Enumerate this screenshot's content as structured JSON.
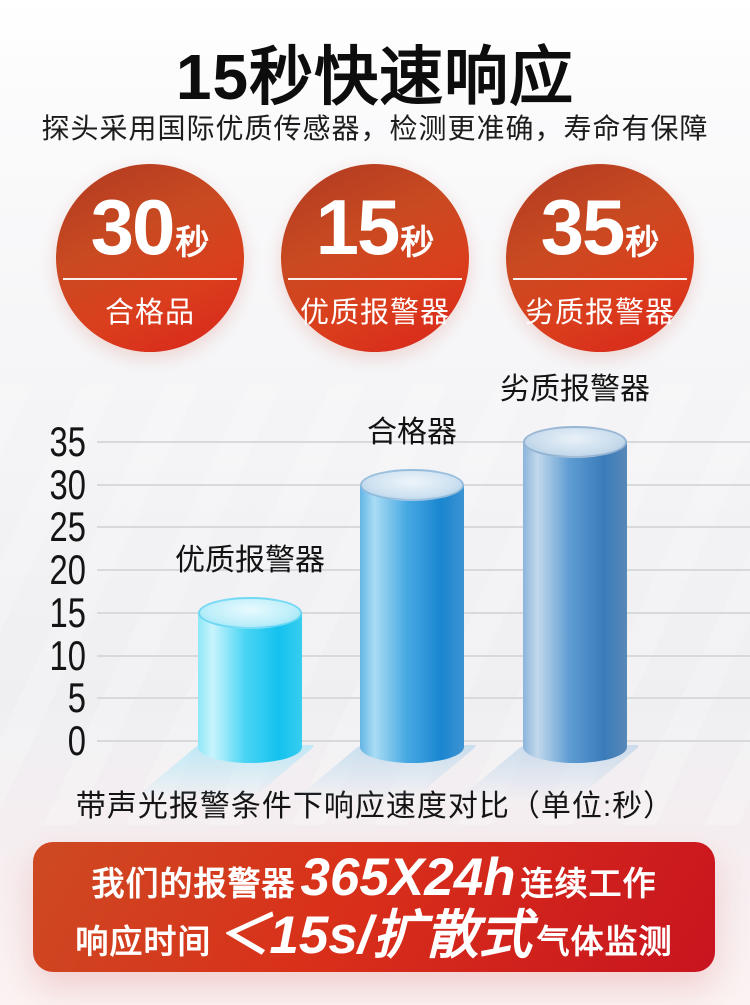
{
  "header": {
    "title": "15秒快速响应",
    "subtitle": "探头采用国际优质传感器，检测更准确，寿命有保障"
  },
  "badges": [
    {
      "value": "30",
      "unit": "秒",
      "label": "合格品"
    },
    {
      "value": "15",
      "unit": "秒",
      "label": "优质报警器"
    },
    {
      "value": "35",
      "unit": "秒",
      "label": "劣质报警器"
    }
  ],
  "chart_data": {
    "type": "bar",
    "bar_style": "cylinder-3d",
    "title": "带声光报警条件下响应速度对比（单位:秒）",
    "categories": [
      "优质报警器",
      "合格器",
      "劣质报警器"
    ],
    "values": [
      15,
      30,
      35
    ],
    "xlabel": "",
    "ylabel": "",
    "ylim": [
      0,
      35
    ],
    "yticks": [
      0,
      5,
      10,
      15,
      20,
      25,
      30,
      35
    ],
    "grid": true,
    "legend": false
  },
  "banner": {
    "line1_prefix": "我们的报警器",
    "line1_big": "365X24h",
    "line1_suffix": "连续工作",
    "line2_prefix": "响应时间",
    "line2_big": "＜15s/扩散式",
    "line2_suffix": "气体监测"
  },
  "colors": {
    "badge_red_top": "#b03922",
    "badge_red_bottom": "#d8241a",
    "banner_red_left": "#cd4a22",
    "banner_red_right": "#c8141f",
    "grid_line": "#d8d9db",
    "bars": [
      {
        "body": [
          "#8fe7f8",
          "#c9f4fd",
          "#4ad5f4",
          "#14c2ee",
          "#38cdf0"
        ],
        "top": [
          "#e8fafe",
          "#bfeffa",
          "#8ce2f6"
        ],
        "rim": "rgba(60,200,240,0.55)",
        "shadow": "rgba(150,225,248,0.55)"
      },
      {
        "body": [
          "#63b5e5",
          "#a9dcf4",
          "#47a9e2",
          "#1a86d0",
          "#3c93d2"
        ],
        "top": [
          "#eef5fb",
          "#cfe2f1",
          "#a7cae6"
        ],
        "rim": "rgba(90,150,200,0.45)",
        "shadow": "rgba(160,205,235,0.5)"
      },
      {
        "body": [
          "#8cb4da",
          "#c2d8ec",
          "#5e9cd2",
          "#3a7cba",
          "#5888b8"
        ],
        "top": [
          "#e9f1f8",
          "#cadded",
          "#a8c6e2"
        ],
        "rim": "rgba(100,140,185,0.45)",
        "shadow": "rgba(165,200,230,0.5)"
      }
    ]
  }
}
